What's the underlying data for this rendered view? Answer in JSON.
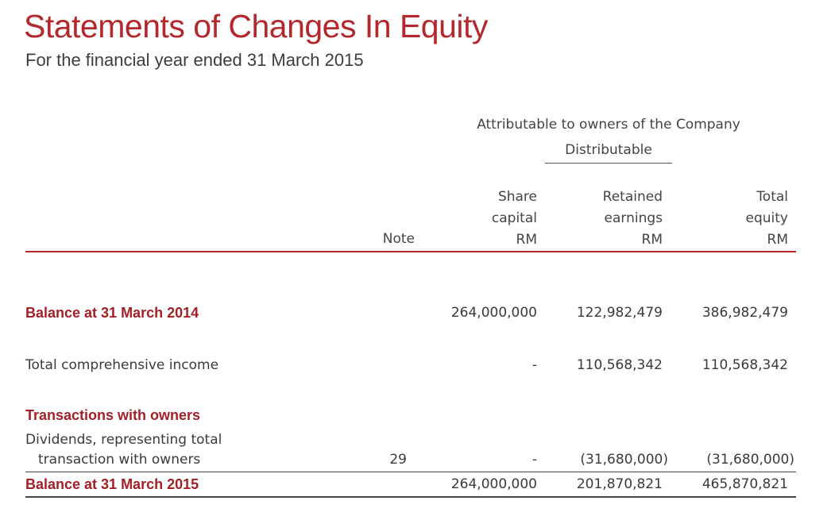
{
  "header": {
    "title": "Statements of Changes In Equity",
    "subtitle": "For the financial year ended 31 March 2015"
  },
  "table": {
    "group_label": "Attributable to owners of the Company",
    "subgroup_label": "Distributable",
    "columns": {
      "note": "Note",
      "share_capital": [
        "Share",
        "capital",
        "RM"
      ],
      "retained_earnings": [
        "Retained",
        "earnings",
        "RM"
      ],
      "total_equity": [
        "Total",
        "equity",
        "RM"
      ]
    },
    "rows": {
      "opening": {
        "label": "Balance at 31 March 2014",
        "share_capital": "264,000,000",
        "retained_earnings": "122,982,479",
        "total_equity": "386,982,479"
      },
      "tci": {
        "label": "Total comprehensive income",
        "share_capital": "-",
        "retained_earnings": "110,568,342",
        "total_equity": "110,568,342"
      },
      "transactions_heading": "Transactions with owners",
      "dividends": {
        "label_line1": "Dividends, representing total",
        "label_line2": "transaction with owners",
        "note": "29",
        "share_capital": "-",
        "retained_earnings": "(31,680,000)",
        "total_equity": "(31,680,000)"
      },
      "closing": {
        "label": "Balance at 31 March 2015",
        "share_capital": "264,000,000",
        "retained_earnings": "201,870,821",
        "total_equity": "465,870,821"
      }
    }
  },
  "colors": {
    "accent": "#a32026",
    "rule": "#b3282d",
    "text": "#3a3a3a"
  }
}
